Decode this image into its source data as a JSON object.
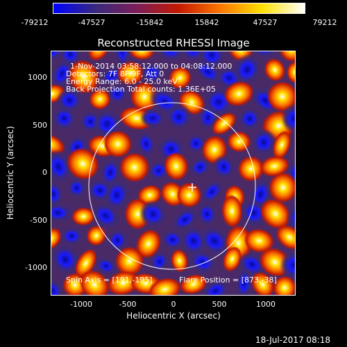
{
  "colorbar": {
    "ticks": [
      "-79212",
      "-47527",
      "-15842",
      "15842",
      "47527",
      "79212"
    ],
    "colors": [
      "#0000ff",
      "#3a2a7c",
      "#7b1e5a",
      "#c41a00",
      "#ff7a00",
      "#ffe000",
      "#ffffff"
    ]
  },
  "title": "Reconstructed RHESSI Image",
  "info": {
    "line1": "1-Nov-2014 03:58:12.000 to 04:08:12.000",
    "line2": "Detectors: 7F 8F 9F, Att 0",
    "line3": "Energy Range: 6.0 - 25.0 keV",
    "line4": "Back Projection    Total counts: 1.36E+05"
  },
  "bottom_left": "Spin Axis = [191,-195]",
  "bottom_right": "Flare Position = [873,-38]",
  "xlabel": "Heliocentric X (arcsec)",
  "ylabel": "Heliocentric Y (arcsec)",
  "x_ticks": [
    "-1000",
    "-500",
    "0",
    "500",
    "1000"
  ],
  "y_ticks": [
    "1000",
    "500",
    "0",
    "-500",
    "-1000"
  ],
  "date_stamp": "18-Jul-2017 08:18",
  "icons": {
    "marker": "crosshair-icon"
  }
}
